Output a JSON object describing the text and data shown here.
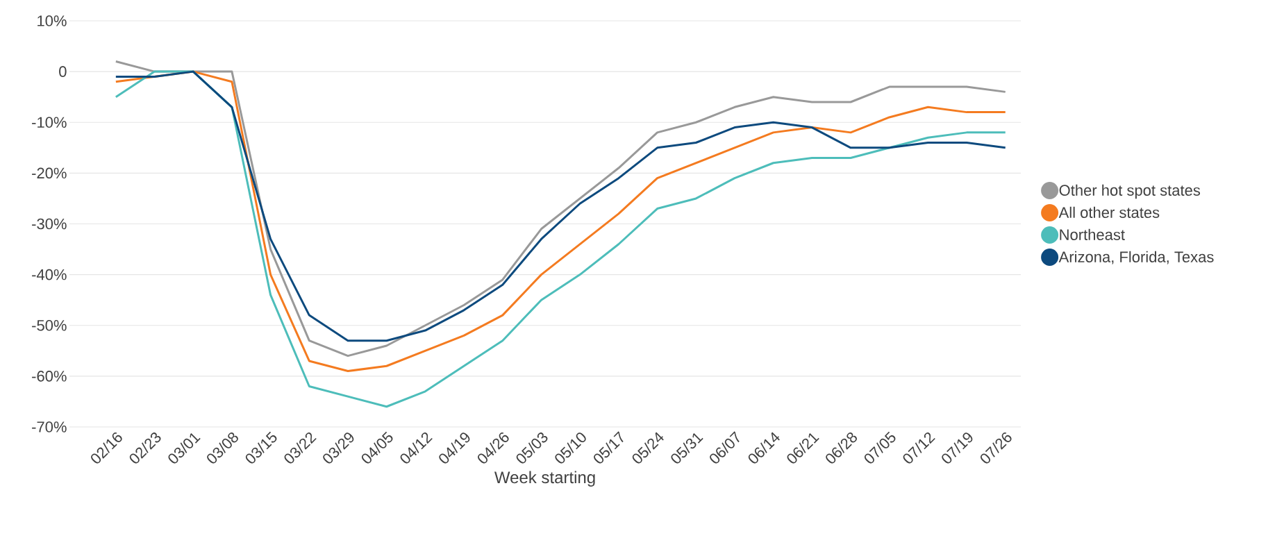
{
  "chart_data": {
    "type": "line",
    "xlabel": "Week starting",
    "categories": [
      "02/16",
      "02/23",
      "03/01",
      "03/08",
      "03/15",
      "03/22",
      "03/29",
      "04/05",
      "04/12",
      "04/19",
      "04/26",
      "05/03",
      "05/10",
      "05/17",
      "05/24",
      "05/31",
      "06/07",
      "06/14",
      "06/21",
      "06/28",
      "07/05",
      "07/12",
      "07/19",
      "07/26"
    ],
    "series": [
      {
        "name": "Other hot spot states",
        "color": "#999999",
        "values": [
          2,
          0,
          0,
          0,
          -35,
          -53,
          -56,
          -54,
          -50,
          -46,
          -41,
          -31,
          -25,
          -19,
          -12,
          -10,
          -7,
          -5,
          -6,
          -6,
          -3,
          -3,
          -3,
          -4
        ]
      },
      {
        "name": "All other states",
        "color": "#f47b20",
        "values": [
          -2,
          -1,
          0,
          -2,
          -40,
          -57,
          -59,
          -58,
          -55,
          -52,
          -48,
          -40,
          -34,
          -28,
          -21,
          -18,
          -15,
          -12,
          -11,
          -12,
          -9,
          -7,
          -8,
          -8
        ]
      },
      {
        "name": "Northeast",
        "color": "#4dbdba",
        "values": [
          -5,
          0,
          0,
          -7,
          -44,
          -62,
          -64,
          -66,
          -63,
          -58,
          -53,
          -45,
          -40,
          -34,
          -27,
          -25,
          -21,
          -18,
          -17,
          -17,
          -15,
          -13,
          -12,
          -12
        ]
      },
      {
        "name": "Arizona, Florida, Texas",
        "color": "#0d4a7e",
        "values": [
          -1,
          -1,
          0,
          -7,
          -33,
          -48,
          -53,
          -53,
          -51,
          -47,
          -42,
          -33,
          -26,
          -21,
          -15,
          -14,
          -11,
          -10,
          -11,
          -15,
          -15,
          -14,
          -14,
          -15
        ]
      }
    ],
    "ylim": [
      -70,
      10
    ],
    "yticks": [
      {
        "value": 10,
        "label": "10%"
      },
      0,
      {
        "value": -10,
        "label": "-10%"
      },
      {
        "value": -20,
        "label": "-20%"
      },
      {
        "value": -30,
        "label": "-30%"
      },
      {
        "value": -40,
        "label": "-40%"
      },
      {
        "value": -50,
        "label": "-50%"
      },
      {
        "value": -60,
        "label": "-60%"
      },
      {
        "value": -70,
        "label": "-70%"
      }
    ],
    "grid": "y",
    "legend": "right"
  }
}
